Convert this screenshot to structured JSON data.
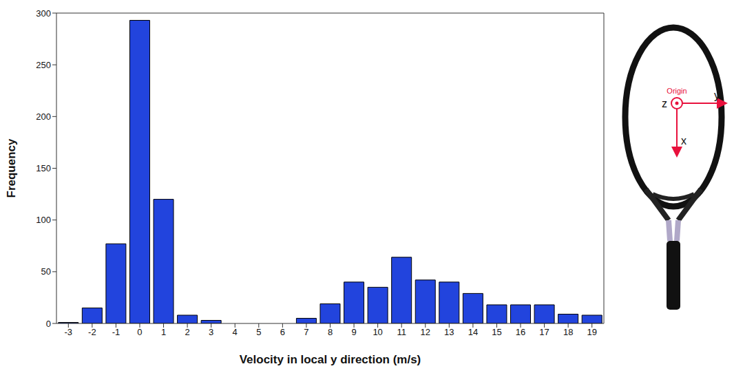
{
  "chart_data": {
    "type": "bar",
    "x_label": "Velocity in local y direction (m/s)",
    "y_label": "Frequency",
    "categories": [
      "-3",
      "-2",
      "-1",
      "0",
      "1",
      "2",
      "3",
      "4",
      "5",
      "6",
      "7",
      "8",
      "9",
      "10",
      "11",
      "12",
      "13",
      "14",
      "15",
      "16",
      "17",
      "18",
      "19"
    ],
    "values": [
      1,
      15,
      77,
      293,
      120,
      8,
      3,
      0,
      0,
      0,
      5,
      19,
      40,
      35,
      64,
      42,
      40,
      29,
      18,
      18,
      18,
      9,
      8
    ],
    "color": "#2244dd",
    "ylim": [
      0,
      300
    ],
    "yticks": [
      0,
      50,
      100,
      150,
      200,
      250,
      300
    ],
    "grid": false,
    "annotations": {
      "origin": "Origin",
      "z_axis": "z",
      "y_axis": "y",
      "x_axis": "x"
    }
  }
}
